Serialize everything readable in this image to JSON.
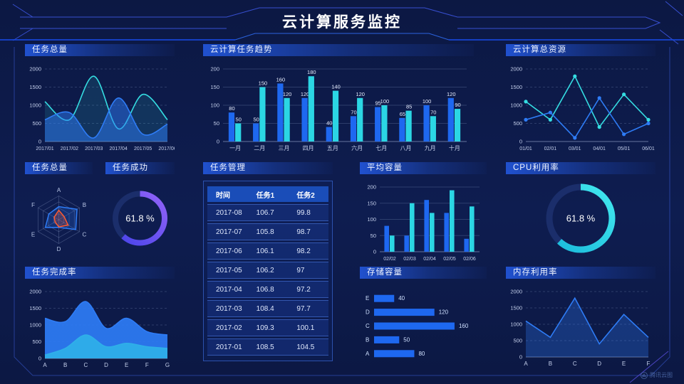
{
  "header": {
    "title": "云计算服务监控"
  },
  "watermark": {
    "label": "腾讯云图"
  },
  "colors": {
    "background": "#0c1843",
    "panel_title_bar": "#2154d6",
    "series_blue": "#1e68f0",
    "series_cyan": "#2bd6e4",
    "series_azure": "#2fb0e8",
    "donut_purple": "#8b5cf6",
    "radar_orange": "#ff5a30"
  },
  "chart_data": [
    {
      "id": "task-total-area",
      "type": "area",
      "smooth": true,
      "title": "任务总量",
      "categories": [
        "2017/01",
        "2017/02",
        "2017/03",
        "2017/04",
        "2017/05",
        "2017/06"
      ],
      "series": [
        {
          "color": "cyan",
          "fillAlpha": 0.13,
          "values": [
            1100,
            600,
            1800,
            350,
            1300,
            600
          ]
        },
        {
          "color": "blue",
          "fillAlpha": 0.5,
          "values": [
            600,
            800,
            100,
            1200,
            200,
            480
          ]
        }
      ],
      "ylim": [
        0,
        2000
      ],
      "yticks": [
        0,
        500,
        1000,
        1500,
        2000
      ],
      "grid": "dashed",
      "legend": "none"
    },
    {
      "id": "cloud-task-trend",
      "type": "bar",
      "labels": true,
      "title": "云计算任务趋势",
      "categories": [
        "一月",
        "二月",
        "三月",
        "四月",
        "五月",
        "六月",
        "七月",
        "八月",
        "九月",
        "十月"
      ],
      "series": [
        {
          "color": "blue",
          "values": [
            80,
            50,
            160,
            120,
            40,
            70,
            95,
            65,
            100,
            120
          ]
        },
        {
          "color": "cyan",
          "values": [
            50,
            150,
            120,
            180,
            140,
            120,
            100,
            85,
            70,
            90
          ]
        }
      ],
      "ylim": [
        0,
        200
      ],
      "yticks": [
        0,
        50,
        100,
        150,
        200
      ],
      "grid": "solid",
      "legend": "none",
      "xfs": 8
    },
    {
      "id": "cloud-total-resource",
      "type": "line",
      "markers": true,
      "title": "云计算总资源",
      "categories": [
        "01/01",
        "02/01",
        "03/01",
        "04/01",
        "05/01",
        "06/01"
      ],
      "series": [
        {
          "color": "cyan",
          "values": [
            1100,
            600,
            1800,
            400,
            1300,
            600
          ]
        },
        {
          "color": "blue",
          "values": [
            600,
            800,
            100,
            1200,
            200,
            500
          ]
        }
      ],
      "ylim": [
        0,
        2000
      ],
      "yticks": [
        0,
        500,
        1000,
        1500,
        2000
      ],
      "grid": "dashed",
      "legend": "none"
    },
    {
      "id": "task-total-radar",
      "type": "radar",
      "title": "任务总量",
      "axes": [
        "A",
        "B",
        "C",
        "D",
        "E",
        "F"
      ],
      "max": 100,
      "series": [
        {
          "color": "blue",
          "values": [
            55,
            88,
            82,
            32,
            65,
            48
          ]
        },
        {
          "color": "orange",
          "values": [
            40,
            26,
            45,
            30,
            18,
            22
          ]
        }
      ]
    },
    {
      "id": "task-success-donut",
      "type": "donut",
      "title": "任务成功",
      "value": 61.8,
      "label": "61.8 %",
      "color": "purple",
      "stroke": 8
    },
    {
      "id": "task-management-table",
      "type": "table",
      "title": "任务管理",
      "columns": [
        "时间",
        "任务1",
        "任务2"
      ],
      "rows": [
        [
          "2017-08",
          "106.7",
          "99.8"
        ],
        [
          "2017-07",
          "105.8",
          "98.7"
        ],
        [
          "2017-06",
          "106.1",
          "98.2"
        ],
        [
          "2017-05",
          "106.2",
          "97"
        ],
        [
          "2017-04",
          "106.8",
          "97.2"
        ],
        [
          "2017-03",
          "108.4",
          "97.7"
        ],
        [
          "2017-02",
          "109.3",
          "100.1"
        ],
        [
          "2017-01",
          "108.5",
          "104.5"
        ]
      ]
    },
    {
      "id": "average-capacity",
      "type": "bar",
      "labels": false,
      "title": "平均容量",
      "categories": [
        "02/02",
        "02/03",
        "02/04",
        "02/05",
        "02/06"
      ],
      "series": [
        {
          "color": "blue",
          "values": [
            80,
            50,
            160,
            120,
            40
          ]
        },
        {
          "color": "cyan",
          "values": [
            50,
            150,
            120,
            190,
            140
          ]
        }
      ],
      "ylim": [
        0,
        200
      ],
      "yticks": [
        0,
        50,
        100,
        150,
        200
      ],
      "grid": "solid",
      "legend": "none",
      "xfs": 7
    },
    {
      "id": "cpu-utilization-donut",
      "type": "donut",
      "title": "CPU利用率",
      "value": 61.8,
      "label": "61.8 %",
      "color": "cyan",
      "stroke": 9
    },
    {
      "id": "task-completion-rate",
      "type": "area",
      "smooth": true,
      "title": "任务完成率",
      "categories": [
        "A",
        "B",
        "C",
        "D",
        "E",
        "F",
        "G"
      ],
      "series": [
        {
          "color": "blue",
          "fillAlpha": 0.92,
          "values": [
            1200,
            1100,
            1700,
            900,
            1200,
            800,
            700
          ]
        },
        {
          "color": "azure",
          "fillAlpha": 0.92,
          "values": [
            100,
            300,
            700,
            350,
            450,
            350,
            300
          ]
        }
      ],
      "ylim": [
        0,
        2000
      ],
      "yticks": [
        0,
        500,
        1000,
        1500,
        2000
      ],
      "grid": "dashed",
      "legend": "none",
      "xfs": 8
    },
    {
      "id": "storage-capacity",
      "type": "hbar",
      "title": "存储容量",
      "categories": [
        "E",
        "D",
        "C",
        "B",
        "A"
      ],
      "values": [
        40,
        120,
        160,
        50,
        80
      ],
      "xmax": 170
    },
    {
      "id": "memory-utilization",
      "type": "area",
      "smooth": false,
      "title": "内存利用率",
      "categories": [
        "A",
        "B",
        "C",
        "D",
        "E",
        "F"
      ],
      "series": [
        {
          "color": "blue",
          "fillAlpha": 0.3,
          "values": [
            1100,
            600,
            1800,
            400,
            1300,
            600
          ]
        }
      ],
      "ylim": [
        0,
        2000
      ],
      "yticks": [
        0,
        500,
        1000,
        1500,
        2000
      ],
      "grid": "dashed",
      "legend": "none",
      "xfs": 8
    }
  ]
}
